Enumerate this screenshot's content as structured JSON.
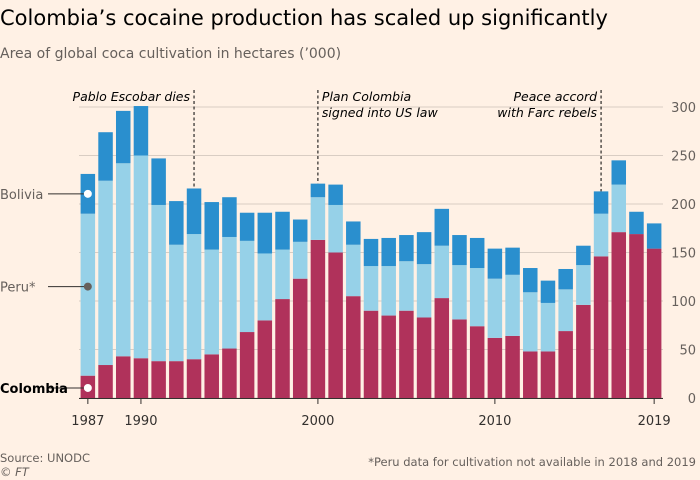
{
  "header": {
    "title": "Colombia’s cocaine production has scaled up significantly",
    "subtitle": "Area of global coca cultivation in hectares (’000)"
  },
  "footer": {
    "source": "Source: UNODC",
    "credit": "© FT",
    "footnote": "*Peru data for cultivation not available in 2018 and 2019"
  },
  "colors": {
    "colombia": "#b0325b",
    "peru": "#96d1e8",
    "bolivia": "#2a8fce",
    "background": "#fff1e5",
    "grid": "#d9cdc3"
  },
  "chart_data": {
    "type": "bar",
    "stacked": true,
    "categories": [
      1987,
      1988,
      1989,
      1990,
      1991,
      1992,
      1993,
      1994,
      1995,
      1996,
      1997,
      1998,
      1999,
      2000,
      2001,
      2002,
      2003,
      2004,
      2005,
      2006,
      2007,
      2008,
      2009,
      2010,
      2011,
      2012,
      2013,
      2014,
      2015,
      2016,
      2017,
      2018,
      2019
    ],
    "x_tick_labels": [
      "1987",
      "1990",
      "2000",
      "2010",
      "2019"
    ],
    "x_tick_years": [
      1987,
      1990,
      2000,
      2010,
      2019
    ],
    "series": [
      {
        "name": "Colombia",
        "values": [
          23,
          34,
          43,
          41,
          38,
          38,
          40,
          45,
          51,
          68,
          80,
          102,
          123,
          163,
          150,
          105,
          90,
          85,
          90,
          83,
          103,
          81,
          74,
          62,
          64,
          48,
          48,
          69,
          96,
          146,
          171,
          169,
          154
        ]
      },
      {
        "name": "Peru*",
        "values": [
          167,
          190,
          199,
          209,
          161,
          120,
          129,
          108,
          115,
          94,
          69,
          51,
          38,
          44,
          49,
          53,
          46,
          51,
          51,
          55,
          54,
          56,
          60,
          61,
          63,
          61,
          50,
          43,
          41,
          44,
          49,
          0,
          0
        ]
      },
      {
        "name": "Bolivia",
        "values": [
          41,
          50,
          54,
          51,
          48,
          45,
          47,
          49,
          41,
          29,
          42,
          39,
          23,
          14,
          21,
          24,
          28,
          29,
          27,
          33,
          38,
          31,
          31,
          31,
          28,
          25,
          23,
          21,
          20,
          23,
          25,
          23,
          26
        ]
      }
    ],
    "ylim": [
      0,
      300
    ],
    "y_ticks": [
      0,
      50,
      100,
      150,
      200,
      250,
      300
    ],
    "y_axis_position": "right",
    "grid": true,
    "annotations": [
      {
        "year": 1993,
        "line1": "Pablo Escobar dies",
        "line2": "",
        "align": "end"
      },
      {
        "year": 2000,
        "line1": "Plan Colombia",
        "line2": "signed into US law",
        "align": "start"
      },
      {
        "year": 2016,
        "line1": "Peace accord",
        "line2": "with Farc rebels",
        "align": "end"
      }
    ]
  }
}
